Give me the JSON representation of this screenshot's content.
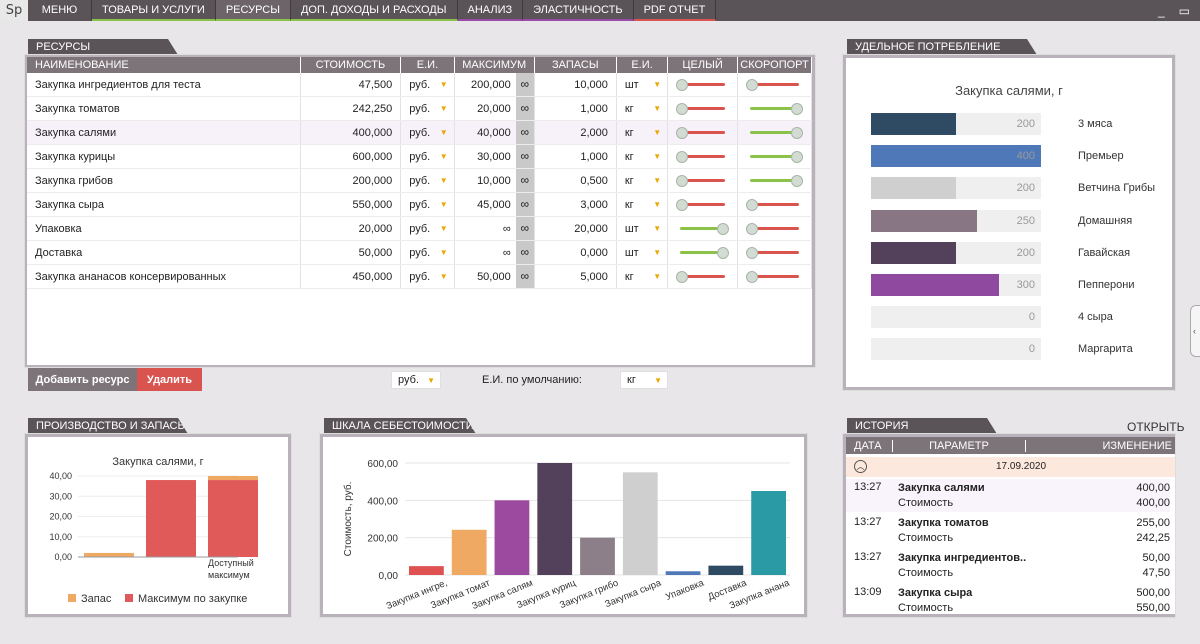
{
  "app": {
    "logo": "Sp"
  },
  "nav": {
    "tabs": [
      {
        "label": "МЕНЮ",
        "color": ""
      },
      {
        "label": "ТОВАРЫ И УСЛУГИ",
        "color": "#8bc34a"
      },
      {
        "label": "РЕСУРСЫ",
        "color": "#8bc34a"
      },
      {
        "label": "ДОП. ДОХОДЫ И РАСХОДЫ",
        "color": "#8bc34a"
      },
      {
        "label": "АНАЛИЗ",
        "color": "#9c4aa8"
      },
      {
        "label": "ЭЛАСТИЧНОСТЬ",
        "color": "#9c4aa8"
      },
      {
        "label": "PDF ОТЧЕТ",
        "color": "#d9534f"
      }
    ],
    "minimize": "_",
    "maximize": "▭"
  },
  "resources": {
    "title": "РЕСУРСЫ",
    "columns": [
      "НАИМЕНОВАНИЕ",
      "СТОИМОСТЬ",
      "Е.И.",
      "МАКСИМУМ",
      "ЗАПАСЫ",
      "Е.И.",
      "ЦЕЛЫЙ",
      "СКОРОПОРТ"
    ],
    "rows": [
      {
        "name": "Закупка ингредиентов для теста",
        "cost": "47,500",
        "unit": "руб.",
        "max": "200,000",
        "stock": "10,000",
        "sunit": "шт",
        "whole": 0,
        "perish": 0
      },
      {
        "name": "Закупка томатов",
        "cost": "242,250",
        "unit": "руб.",
        "max": "20,000",
        "stock": "1,000",
        "sunit": "кг",
        "whole": 0,
        "perish": 1
      },
      {
        "name": "Закупка салями",
        "cost": "400,000",
        "unit": "руб.",
        "max": "40,000",
        "stock": "2,000",
        "sunit": "кг",
        "whole": 0,
        "perish": 1
      },
      {
        "name": "Закупка курицы",
        "cost": "600,000",
        "unit": "руб.",
        "max": "30,000",
        "stock": "1,000",
        "sunit": "кг",
        "whole": 0,
        "perish": 1
      },
      {
        "name": "Закупка грибов",
        "cost": "200,000",
        "unit": "руб.",
        "max": "10,000",
        "stock": "0,500",
        "sunit": "кг",
        "whole": 0,
        "perish": 1
      },
      {
        "name": "Закупка сыра",
        "cost": "550,000",
        "unit": "руб.",
        "max": "45,000",
        "stock": "3,000",
        "sunit": "кг",
        "whole": 0,
        "perish": 0
      },
      {
        "name": "Упаковка",
        "cost": "20,000",
        "unit": "руб.",
        "max": "∞",
        "stock": "20,000",
        "sunit": "шт",
        "whole": 1,
        "perish": 0
      },
      {
        "name": "Доставка",
        "cost": "50,000",
        "unit": "руб.",
        "max": "∞",
        "stock": "0,000",
        "sunit": "шт",
        "whole": 1,
        "perish": 0
      },
      {
        "name": "Закупка ананасов консервированных",
        "cost": "450,000",
        "unit": "руб.",
        "max": "50,000",
        "stock": "5,000",
        "sunit": "кг",
        "whole": 0,
        "perish": 0
      }
    ],
    "infinity": "∞",
    "add_label": "Добавить ресурс",
    "delete_label": "Удалить",
    "currency_select": "руб.",
    "default_unit_label": "Е.И. по умолчанию:",
    "default_unit_select": "кг"
  },
  "consumption": {
    "title": "УДЕЛЬНОЕ ПОТРЕБЛЕНИЕ РЕСУРСА",
    "chart_title": "Закупка салями, г",
    "chart_data": {
      "type": "bar",
      "categories": [
        "3 мяса",
        "Премьер",
        "Ветчина Грибы",
        "Домашняя",
        "Гавайская",
        "Пепперони",
        "4 сыра",
        "Маргарита"
      ],
      "values": [
        200,
        400,
        200,
        250,
        200,
        300,
        0,
        0
      ],
      "colors": [
        "#2f4a63",
        "#4f78b8",
        "#cfcfcf",
        "#887685",
        "#53405a",
        "#8f4aa0",
        "#efefef",
        "#efefef"
      ]
    }
  },
  "production": {
    "title": "ПРОИЗВОДСТВО И ЗАПАСЫ",
    "chart_data": {
      "type": "bar",
      "title": "Закупка салями, г",
      "ylim": [
        0,
        40
      ],
      "yticks": [
        "40,00",
        "30,00",
        "20,00",
        "10,00",
        "0,00"
      ],
      "bars": [
        {
          "stock": 2,
          "max": 0
        },
        {
          "stock": 0,
          "max": 38
        },
        {
          "stock": 2,
          "max": 38
        }
      ],
      "annotation": "Доступный максимум",
      "legend": [
        {
          "name": "Запас",
          "color": "#f0a963"
        },
        {
          "name": "Максимум по закупке",
          "color": "#e05a5a"
        }
      ]
    }
  },
  "cost_scale": {
    "title": "ШКАЛА СЕБЕСТОИМОСТИ",
    "chart_data": {
      "type": "bar",
      "ylabel": "Стоимость, руб.",
      "ylim": [
        0,
        600
      ],
      "yticks": [
        "600,00",
        "400,00",
        "200,00",
        "0,00"
      ],
      "categories": [
        "Закупка ингре,",
        "Закупка томат",
        "Закупка салям",
        "Закупка куриц",
        "Закупка грибо",
        "Закупка сыра",
        "Упаковка",
        "Доставка",
        "Закупка анана"
      ],
      "values": [
        47.5,
        242.25,
        400,
        600,
        200,
        550,
        20,
        50,
        450
      ],
      "colors": [
        "#e05252",
        "#f0a963",
        "#9c4aa0",
        "#53405a",
        "#8d7f8a",
        "#cfcfcf",
        "#4f78b8",
        "#2f4a63",
        "#2a9aa5"
      ]
    }
  },
  "history": {
    "title": "ИСТОРИЯ",
    "open_label": "ОТКРЫТЬ",
    "columns": [
      "ДАТА",
      "ПАРАМЕТР",
      "ИЗМЕНЕНИЕ"
    ],
    "date_group": "17.09.2020",
    "entries": [
      {
        "time": "13:27",
        "name": "Закупка салями",
        "param": "Стоимость",
        "to": "400,00",
        "from": "400,00"
      },
      {
        "time": "13:27",
        "name": "Закупка томатов",
        "param": "Стоимость",
        "to": "255,00",
        "from": "242,25"
      },
      {
        "time": "13:27",
        "name": "Закупка ингредиентов..",
        "param": "Стоимость",
        "to": "50,00",
        "from": "47,50"
      },
      {
        "time": "13:09",
        "name": "Закупка сыра",
        "param": "Стоимость",
        "to": "500,00",
        "from": "550,00"
      }
    ]
  }
}
